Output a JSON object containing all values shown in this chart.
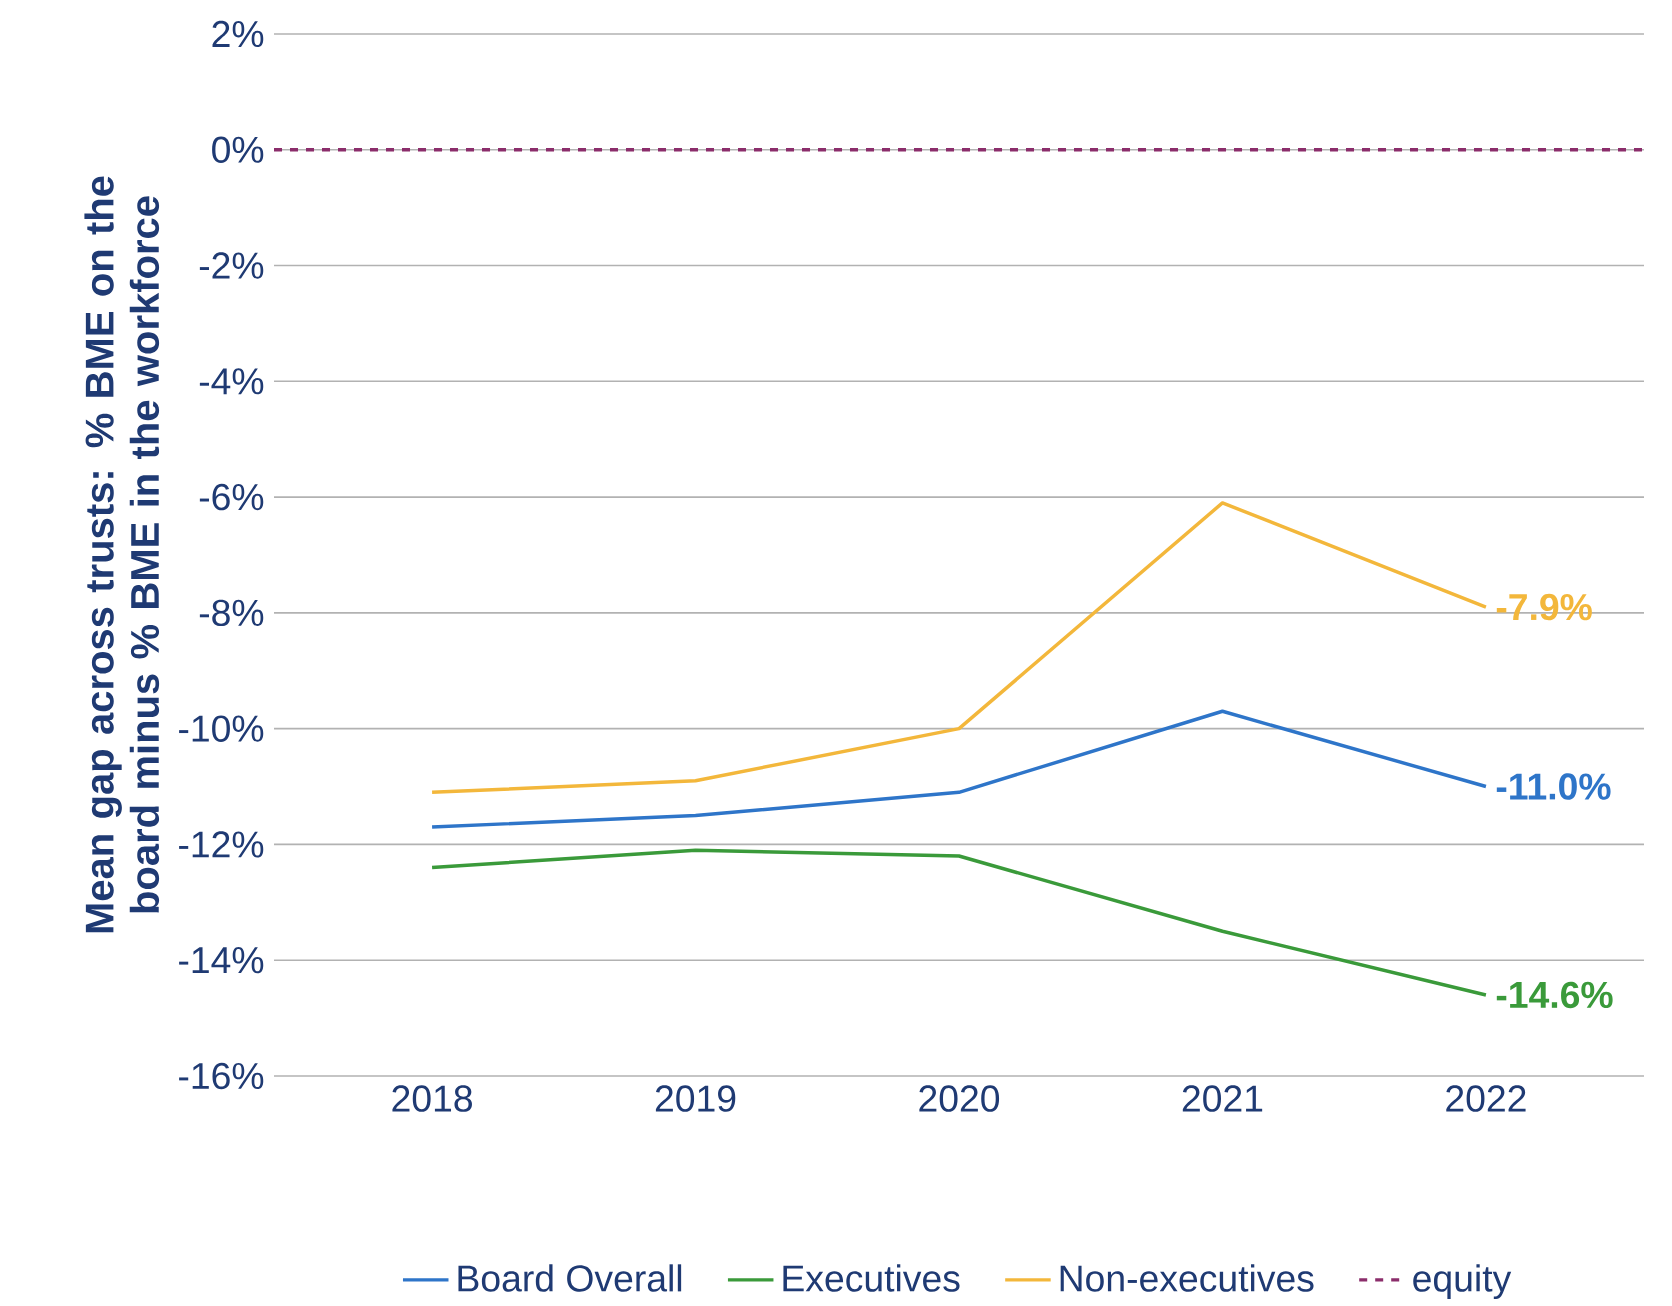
{
  "chart_data": {
    "type": "line",
    "ylabel": "Mean gap across trusts: % BME on the board minus % BME in the workforce",
    "categories": [
      "2018",
      "2019",
      "2020",
      "2021",
      "2022"
    ],
    "series": [
      {
        "name": "Board Overall",
        "color": "#2e75c9",
        "values": [
          -11.7,
          -11.5,
          -11.1,
          -9.7,
          -11.0
        ],
        "value_labels": [
          null,
          null,
          null,
          null,
          "-11.0%"
        ]
      },
      {
        "name": "Executives",
        "color": "#3a9a3a",
        "values": [
          -12.4,
          -12.1,
          -12.2,
          -13.5,
          -14.6
        ],
        "value_labels": [
          null,
          null,
          null,
          null,
          "-14.6%"
        ]
      },
      {
        "name": "Non-executives",
        "color": "#f3b73b",
        "values": [
          -11.1,
          -10.9,
          -10.0,
          -6.1,
          -7.9
        ],
        "value_labels": [
          null,
          null,
          null,
          null,
          "-7.9%"
        ]
      }
    ],
    "ref_lines": [
      {
        "axis": "y",
        "value": 0,
        "label": "equity",
        "color": "#8b2d6b",
        "line_style": "dashed"
      }
    ],
    "ylim": [
      -16,
      2
    ],
    "yticks": [
      {
        "value": -16,
        "label": "-16%"
      },
      {
        "value": -14,
        "label": "-14%"
      },
      {
        "value": -12,
        "label": "-12%"
      },
      {
        "value": -10,
        "label": "-10%"
      },
      {
        "value": -8,
        "label": "-8%"
      },
      {
        "value": -6,
        "label": "-6%"
      },
      {
        "value": -4,
        "label": "-4%"
      },
      {
        "value": -2,
        "label": "-2%"
      },
      {
        "value": 0,
        "label": "0%"
      },
      {
        "value": 2,
        "label": "2%"
      }
    ],
    "grid": "y",
    "legend": "bottom",
    "marker": "none",
    "line_style": "solid"
  }
}
